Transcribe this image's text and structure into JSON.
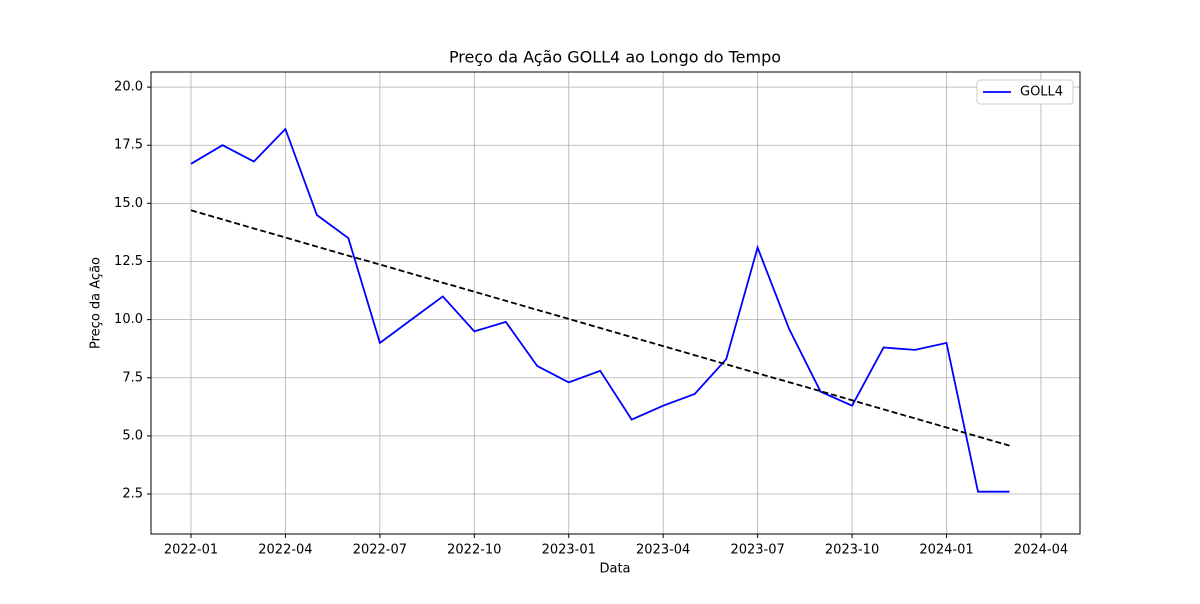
{
  "chart_data": {
    "type": "line",
    "title": "Preço da Ação GOLL4 ao Longo do Tempo",
    "xlabel": "Data",
    "ylabel": "Preço da Ação",
    "x": [
      "2022-01",
      "2022-02",
      "2022-03",
      "2022-04",
      "2022-05",
      "2022-06",
      "2022-07",
      "2022-08",
      "2022-09",
      "2022-10",
      "2022-11",
      "2022-12",
      "2023-01",
      "2023-02",
      "2023-03",
      "2023-04",
      "2023-05",
      "2023-06",
      "2023-07",
      "2023-08",
      "2023-09",
      "2023-10",
      "2023-11",
      "2023-12",
      "2024-01",
      "2024-02",
      "2024-03"
    ],
    "series": [
      {
        "name": "GOLL4",
        "color": "#0000ff",
        "values": [
          16.7,
          17.5,
          16.8,
          18.2,
          14.5,
          13.5,
          9.0,
          10.0,
          11.0,
          9.5,
          9.9,
          8.0,
          7.3,
          7.8,
          5.7,
          6.3,
          6.8,
          8.3,
          13.1,
          9.6,
          6.9,
          6.3,
          8.8,
          8.7,
          9.0,
          2.6,
          2.6
        ]
      },
      {
        "color": "#000000",
        "dashed": true,
        "values": [
          14.7,
          14.31,
          13.92,
          13.53,
          13.14,
          12.75,
          12.37,
          11.98,
          11.59,
          11.2,
          10.81,
          10.42,
          10.03,
          9.64,
          9.25,
          8.86,
          8.47,
          8.08,
          7.69,
          7.31,
          6.92,
          6.53,
          6.14,
          5.75,
          5.36,
          4.97,
          4.58
        ]
      }
    ],
    "ylim": [
      0.78,
      20.65
    ],
    "yticks": [
      2.5,
      {
        "value": 5.0,
        "label": "5.0"
      },
      7.5,
      {
        "value": 10.0,
        "label": "10.0"
      },
      12.5,
      {
        "value": 15.0,
        "label": "15.0"
      },
      17.5,
      {
        "value": 20.0,
        "label": "20.0"
      }
    ],
    "xticks": [
      "2022-01",
      "2022-04",
      "2022-07",
      "2022-10",
      "2023-01",
      "2023-04",
      "2023-07",
      "2023-10",
      "2024-01",
      "2024-04"
    ],
    "grid": true,
    "legend": "upper right"
  }
}
